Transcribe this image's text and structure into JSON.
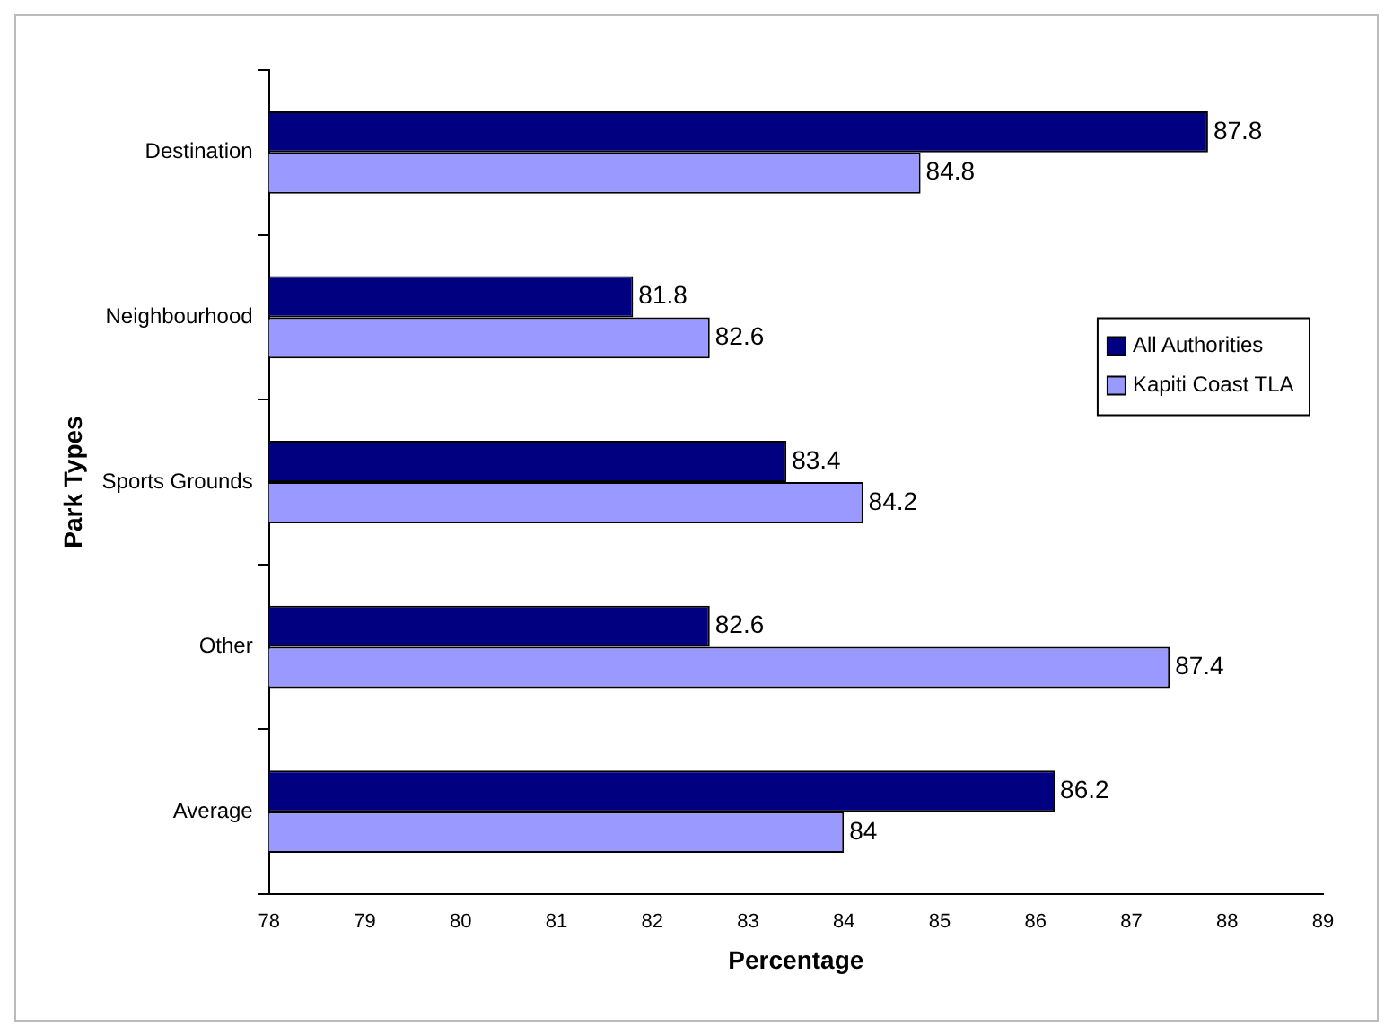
{
  "chart_data": {
    "type": "bar",
    "orientation": "horizontal",
    "xlabel": "Percentage",
    "ylabel": "Park Types",
    "categories": [
      "Destination",
      "Neighbourhood",
      "Sports Grounds",
      "Other",
      "Average"
    ],
    "series": [
      {
        "name": "All Authorities",
        "color": "#000080",
        "values": [
          87.8,
          81.8,
          83.4,
          82.6,
          86.2
        ]
      },
      {
        "name": "Kapiti Coast TLA",
        "color": "#9999ff",
        "values": [
          84.8,
          82.6,
          84.2,
          87.4,
          84
        ]
      }
    ],
    "xlim": [
      78,
      89
    ],
    "xticks": [
      78,
      79,
      80,
      81,
      82,
      83,
      84,
      85,
      86,
      87,
      88,
      89
    ],
    "grid": false,
    "legend": "right",
    "data_labels": true
  }
}
